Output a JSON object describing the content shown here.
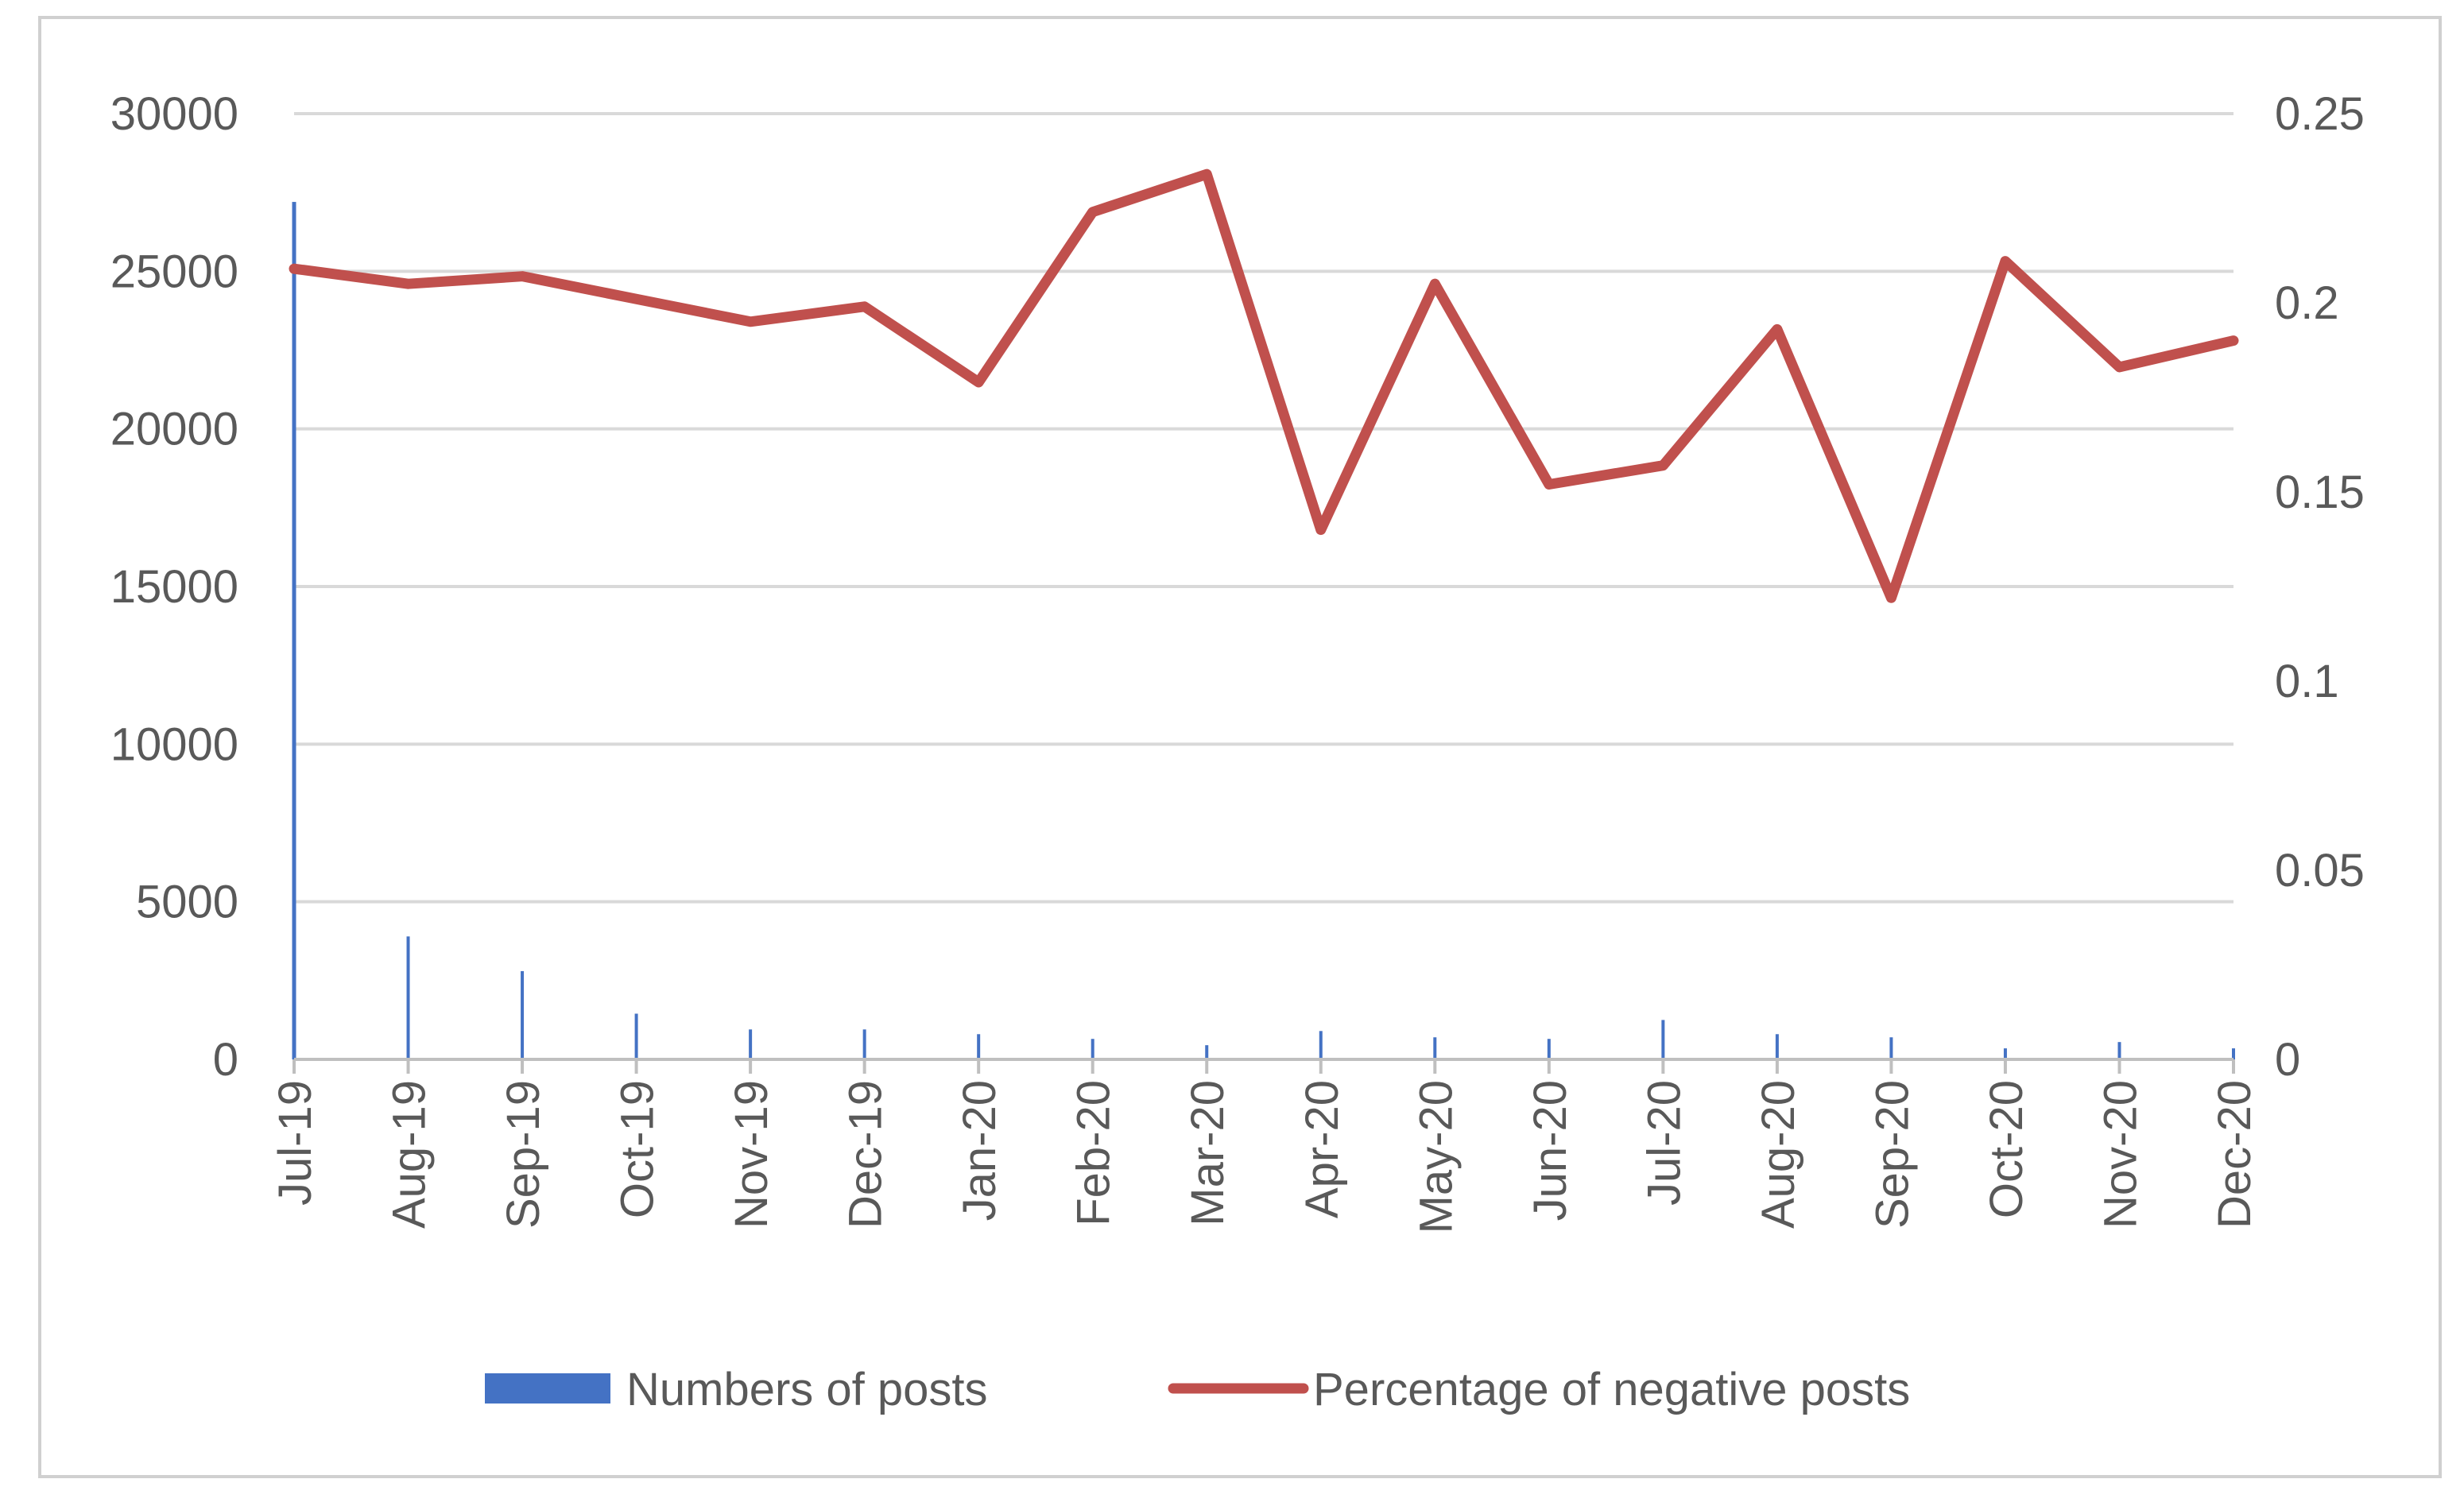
{
  "chart_data": {
    "type": "bar+line",
    "title": "",
    "xlabel": "",
    "ylabel_left": "",
    "ylabel_right": "",
    "categories": [
      "Jul-19",
      "Aug-19",
      "Sep-19",
      "Oct-19",
      "Nov-19",
      "Dec-19",
      "Jan-20",
      "Feb-20",
      "Mar-20",
      "Apr-20",
      "May-20",
      "Jun-20",
      "Jul-20",
      "Aug-20",
      "Sep-20",
      "Oct-20",
      "Nov-20",
      "Dec-20"
    ],
    "ylim_left": [
      0,
      30000
    ],
    "yticks_left": [
      "0",
      "5000",
      "10000",
      "15000",
      "20000",
      "25000",
      "30000"
    ],
    "ylim_right": [
      0,
      0.25
    ],
    "yticks_right": [
      "0",
      "0.05",
      "0.1",
      "0.15",
      "0.2",
      "0.25"
    ],
    "grid": true,
    "legend_position": "bottom",
    "series": [
      {
        "name": "Numbers of posts",
        "type": "bar",
        "axis": "left",
        "color": "#4472c4",
        "values": [
          27200,
          3900,
          2800,
          1450,
          950,
          950,
          800,
          650,
          450,
          900,
          700,
          650,
          1250,
          800,
          700,
          350,
          550,
          350
        ]
      },
      {
        "name": "Percentage of negative posts",
        "type": "line",
        "axis": "right",
        "color": "#c0504d",
        "values": [
          0.209,
          0.205,
          0.207,
          0.201,
          0.195,
          0.199,
          0.179,
          0.224,
          0.234,
          0.14,
          0.205,
          0.152,
          0.157,
          0.193,
          0.122,
          0.211,
          0.183,
          0.19
        ]
      }
    ]
  }
}
